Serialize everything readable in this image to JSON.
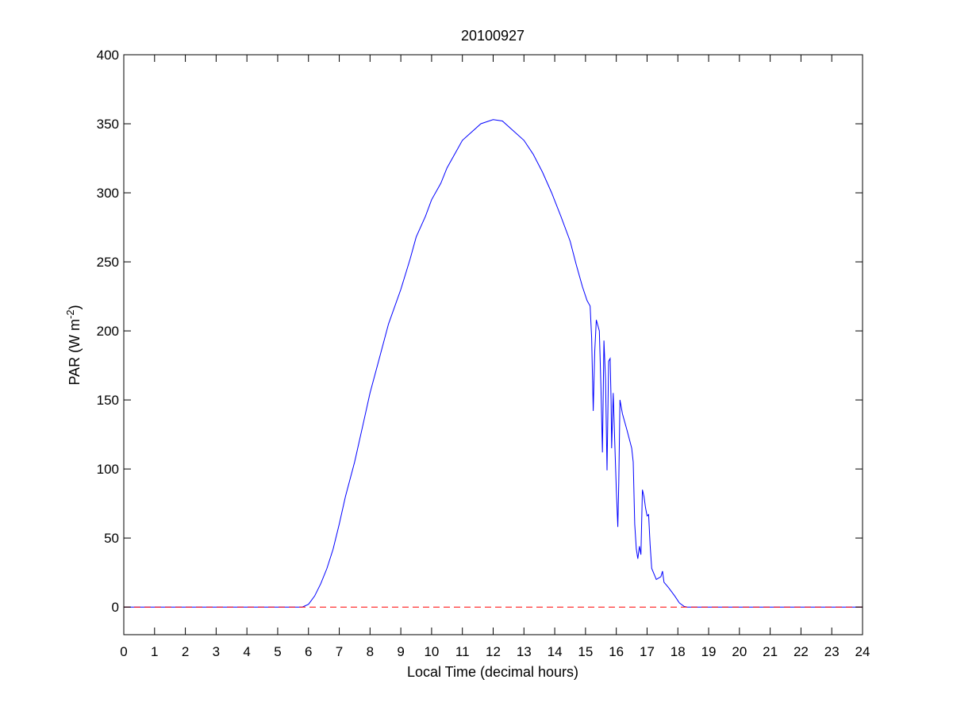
{
  "figure": {
    "background": "#ffffff"
  },
  "chart_data": {
    "type": "line",
    "title": "20100927",
    "xlabel": "Local Time (decimal hours)",
    "ylabel": {
      "prefix": "PAR (W m",
      "superscript": "-2",
      "suffix": ")"
    },
    "xlim": [
      0,
      24
    ],
    "ylim": [
      -20,
      400
    ],
    "xticks": [
      0,
      1,
      2,
      3,
      4,
      5,
      6,
      7,
      8,
      9,
      10,
      11,
      12,
      13,
      14,
      15,
      16,
      17,
      18,
      19,
      20,
      21,
      22,
      23,
      24
    ],
    "xtick_labels": [
      "0",
      "1",
      "2",
      "3",
      "4",
      "5",
      "6",
      "7",
      "8",
      "9",
      "10",
      "11",
      "12",
      "13",
      "14",
      "15",
      "16",
      "17",
      "18",
      "19",
      "20",
      "21",
      "22",
      "23",
      "24"
    ],
    "yticks": [
      0,
      50,
      100,
      150,
      200,
      250,
      300,
      350,
      400
    ],
    "ytick_labels": [
      "0",
      "50",
      "100",
      "150",
      "200",
      "250",
      "300",
      "350",
      "400"
    ],
    "grid": false,
    "box": true,
    "series": [
      {
        "style": "solid",
        "color": "#0000ff",
        "points": [
          [
            0,
            0
          ],
          [
            5.8,
            0
          ],
          [
            6.0,
            2
          ],
          [
            6.2,
            8
          ],
          [
            6.4,
            17
          ],
          [
            6.6,
            28
          ],
          [
            6.8,
            42
          ],
          [
            7.0,
            60
          ],
          [
            7.2,
            80
          ],
          [
            7.5,
            105
          ],
          [
            7.8,
            135
          ],
          [
            8.0,
            155
          ],
          [
            8.3,
            180
          ],
          [
            8.6,
            205
          ],
          [
            9.0,
            230
          ],
          [
            9.3,
            252
          ],
          [
            9.5,
            268
          ],
          [
            9.8,
            283
          ],
          [
            10.0,
            295
          ],
          [
            10.3,
            307
          ],
          [
            10.5,
            318
          ],
          [
            10.8,
            330
          ],
          [
            11.0,
            338
          ],
          [
            11.3,
            344
          ],
          [
            11.6,
            350
          ],
          [
            12.0,
            353
          ],
          [
            12.3,
            352
          ],
          [
            12.6,
            346
          ],
          [
            13.0,
            338
          ],
          [
            13.3,
            328
          ],
          [
            13.6,
            315
          ],
          [
            13.9,
            300
          ],
          [
            14.2,
            283
          ],
          [
            14.5,
            265
          ],
          [
            14.7,
            248
          ],
          [
            14.9,
            232
          ],
          [
            15.05,
            222
          ],
          [
            15.15,
            218
          ],
          [
            15.2,
            195
          ],
          [
            15.25,
            142
          ],
          [
            15.3,
            185
          ],
          [
            15.35,
            208
          ],
          [
            15.45,
            200
          ],
          [
            15.5,
            160
          ],
          [
            15.55,
            112
          ],
          [
            15.6,
            193
          ],
          [
            15.65,
            165
          ],
          [
            15.7,
            99
          ],
          [
            15.75,
            178
          ],
          [
            15.8,
            180
          ],
          [
            15.83,
            150
          ],
          [
            15.85,
            115
          ],
          [
            15.9,
            155
          ],
          [
            15.95,
            120
          ],
          [
            16.0,
            85
          ],
          [
            16.05,
            58
          ],
          [
            16.08,
            90
          ],
          [
            16.12,
            150
          ],
          [
            16.2,
            140
          ],
          [
            16.35,
            128
          ],
          [
            16.5,
            115
          ],
          [
            16.55,
            105
          ],
          [
            16.6,
            60
          ],
          [
            16.65,
            42
          ],
          [
            16.7,
            35
          ],
          [
            16.75,
            44
          ],
          [
            16.8,
            38
          ],
          [
            16.85,
            85
          ],
          [
            16.9,
            80
          ],
          [
            16.95,
            72
          ],
          [
            17.0,
            66
          ],
          [
            17.05,
            67
          ],
          [
            17.1,
            45
          ],
          [
            17.15,
            28
          ],
          [
            17.3,
            20
          ],
          [
            17.45,
            22
          ],
          [
            17.5,
            26
          ],
          [
            17.55,
            18
          ],
          [
            17.7,
            14
          ],
          [
            17.9,
            8
          ],
          [
            18.05,
            3
          ],
          [
            18.2,
            0.5
          ],
          [
            18.3,
            0
          ],
          [
            24,
            0
          ]
        ]
      },
      {
        "style": "dashed",
        "color": "#ff0000",
        "points": [
          [
            0,
            0
          ],
          [
            24,
            0
          ]
        ]
      }
    ]
  }
}
